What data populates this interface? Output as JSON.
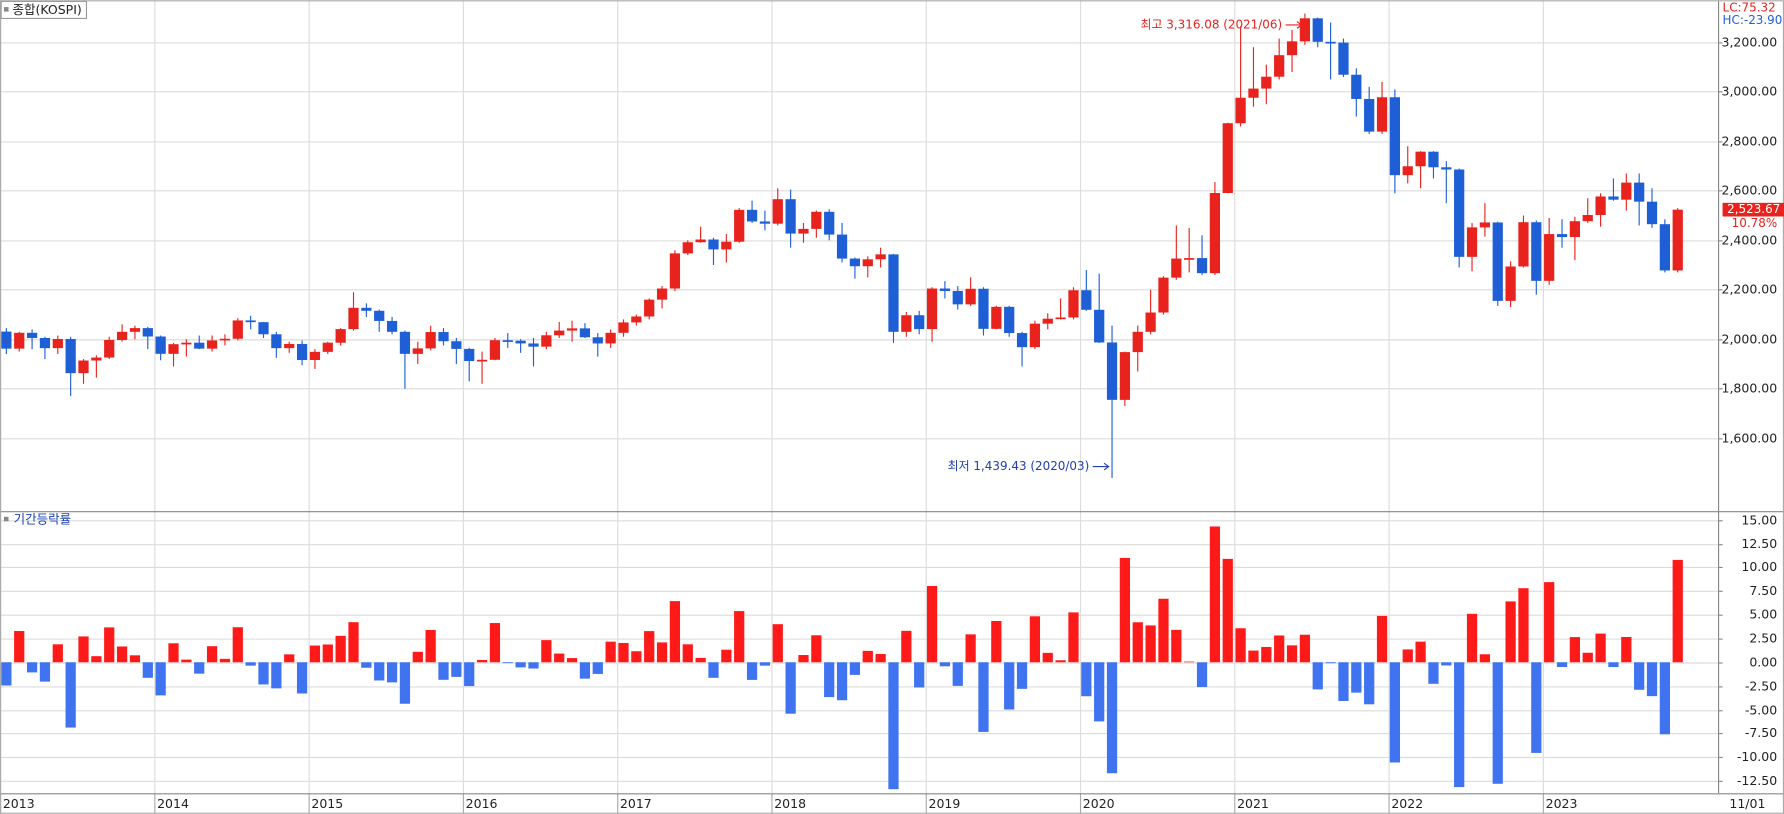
{
  "chart_data": [
    {
      "type": "candlestick",
      "title": "종합(KOSPI)",
      "categories": [
        "2013",
        null,
        null,
        null,
        null,
        null,
        null,
        null,
        null,
        null,
        null,
        null,
        "2014",
        null,
        null,
        null,
        null,
        null,
        null,
        null,
        null,
        null,
        null,
        null,
        "2015",
        null,
        null,
        null,
        null,
        null,
        null,
        null,
        null,
        null,
        null,
        null,
        "2016",
        null,
        null,
        null,
        null,
        null,
        null,
        null,
        null,
        null,
        null,
        null,
        "2017",
        null,
        null,
        null,
        null,
        null,
        null,
        null,
        null,
        null,
        null,
        null,
        "2018",
        null,
        null,
        null,
        null,
        null,
        null,
        null,
        null,
        null,
        null,
        null,
        "2019",
        null,
        null,
        null,
        null,
        null,
        null,
        null,
        null,
        null,
        null,
        null,
        "2020",
        null,
        null,
        null,
        null,
        null,
        null,
        null,
        null,
        null,
        null,
        null,
        "2021",
        null,
        null,
        null,
        null,
        null,
        null,
        null,
        null,
        null,
        null,
        null,
        "2022",
        null,
        null,
        null,
        null,
        null,
        null,
        null,
        null,
        null,
        null,
        null,
        "2023",
        null,
        null,
        null,
        null,
        null,
        null,
        null,
        null,
        null,
        null
      ],
      "open": [
        2031,
        1962,
        2026,
        2005,
        1964,
        2001,
        1863,
        1914,
        1926,
        1997,
        2030,
        2045,
        2011,
        1941,
        1980,
        1986,
        1962,
        1995,
        2002,
        2076,
        2069,
        2020,
        1964,
        1981,
        1916,
        1949,
        1986,
        2041,
        2127,
        2115,
        2074,
        2030,
        1941,
        1963,
        2029,
        1992,
        1961,
        1912,
        1917,
        1996,
        1994,
        1983,
        1970,
        2016,
        2035,
        2044,
        2008,
        1983,
        2026,
        2068,
        2092,
        2160,
        2205,
        2347,
        2392,
        2403,
        2363,
        2394,
        2523,
        2476,
        2467,
        2566,
        2427,
        2446,
        2515,
        2423,
        2326,
        2295,
        2323,
        2343,
        2030,
        2097,
        2041,
        2205,
        2195,
        2141,
        2204,
        2042,
        2131,
        2025,
        1968,
        2063,
        2083,
        2088,
        2198,
        2119,
        1987,
        1755,
        1948,
        2030,
        2108,
        2249,
        2326,
        2328,
        2267,
        2591,
        2873,
        2976,
        3013,
        3061,
        3148,
        3204,
        3297,
        3202,
        3199,
        3069,
        2971,
        2839,
        2978,
        2663,
        2699,
        2758,
        2695,
        2686,
        2333,
        2452,
        2472,
        2155,
        2294,
        2473,
        2236,
        2425,
        2413,
        2477,
        2502,
        2577,
        2564,
        2633,
        2556,
        2465,
        2278
      ],
      "high": [
        2045,
        2030,
        2040,
        2010,
        2015,
        2010,
        1920,
        1935,
        2010,
        2060,
        2055,
        2050,
        2015,
        1985,
        2000,
        2015,
        2015,
        2020,
        2085,
        2095,
        2070,
        2030,
        1990,
        1995,
        1960,
        1990,
        2045,
        2190,
        2145,
        2120,
        2090,
        2035,
        1990,
        2055,
        2045,
        2005,
        1965,
        1950,
        2005,
        2025,
        2000,
        2005,
        2030,
        2070,
        2075,
        2065,
        2025,
        2040,
        2080,
        2100,
        2165,
        2215,
        2360,
        2400,
        2455,
        2410,
        2425,
        2530,
        2560,
        2520,
        2610,
        2605,
        2470,
        2520,
        2525,
        2470,
        2330,
        2335,
        2370,
        2345,
        2110,
        2115,
        2210,
        2235,
        2215,
        2250,
        2210,
        2135,
        2135,
        2030,
        2075,
        2105,
        2165,
        2210,
        2280,
        2265,
        2055,
        1950,
        2055,
        2200,
        2255,
        2460,
        2450,
        2420,
        2635,
        2875,
        3265,
        3180,
        3110,
        3215,
        3250,
        3316.08,
        3300,
        3280,
        3215,
        3095,
        3020,
        3040,
        3010,
        2780,
        2760,
        2760,
        2720,
        2690,
        2470,
        2550,
        2475,
        2315,
        2500,
        2480,
        2490,
        2485,
        2495,
        2570,
        2590,
        2650,
        2670,
        2670,
        2610,
        2485,
        2530
      ],
      "low": [
        1940,
        1950,
        1960,
        1920,
        1940,
        1770,
        1820,
        1845,
        1920,
        1990,
        2000,
        1960,
        1915,
        1890,
        1930,
        1960,
        1950,
        1975,
        1995,
        2040,
        2005,
        1925,
        1945,
        1895,
        1880,
        1940,
        1975,
        2035,
        2090,
        2030,
        2020,
        1800,
        1900,
        1955,
        1975,
        1900,
        1830,
        1820,
        1915,
        1965,
        1945,
        1890,
        1960,
        2005,
        1990,
        2005,
        1930,
        1965,
        2010,
        2055,
        2080,
        2125,
        2195,
        2340,
        2390,
        2300,
        2310,
        2390,
        2470,
        2440,
        2460,
        2370,
        2390,
        2410,
        2400,
        2310,
        2245,
        2250,
        2290,
        1985,
        2010,
        2020,
        1990,
        2165,
        2120,
        2135,
        2015,
        2040,
        2010,
        1890,
        1960,
        2040,
        2080,
        2080,
        2115,
        1985,
        1439.43,
        1730,
        1870,
        2020,
        2100,
        2240,
        2270,
        2260,
        2260,
        2590,
        2860,
        2940,
        2950,
        3050,
        3080,
        3190,
        3180,
        3050,
        3060,
        2900,
        2830,
        2830,
        2590,
        2630,
        2610,
        2650,
        2550,
        2290,
        2275,
        2415,
        2135,
        2130,
        2290,
        2180,
        2220,
        2370,
        2320,
        2470,
        2455,
        2560,
        2520,
        2460,
        2450,
        2270,
        2270
      ],
      "close": [
        1962,
        2026,
        2005,
        1964,
        2001,
        1863,
        1914,
        1926,
        1997,
        2030,
        2045,
        2011,
        1941,
        1980,
        1986,
        1962,
        1995,
        2002,
        2076,
        2069,
        2020,
        1964,
        1981,
        1916,
        1949,
        1986,
        2041,
        2127,
        2115,
        2074,
        2030,
        1941,
        1963,
        2029,
        1992,
        1961,
        1912,
        1917,
        1996,
        1994,
        1983,
        1970,
        2016,
        2035,
        2044,
        2008,
        1983,
        2026,
        2068,
        2092,
        2160,
        2205,
        2347,
        2392,
        2403,
        2363,
        2394,
        2523,
        2476,
        2467,
        2566,
        2427,
        2446,
        2515,
        2423,
        2326,
        2295,
        2323,
        2343,
        2030,
        2097,
        2041,
        2205,
        2195,
        2141,
        2204,
        2042,
        2131,
        2025,
        1968,
        2063,
        2083,
        2088,
        2198,
        2119,
        1987,
        1755,
        1948,
        2030,
        2108,
        2249,
        2326,
        2328,
        2267,
        2591,
        2873,
        2976,
        3013,
        3061,
        3148,
        3204,
        3297,
        3202,
        3199,
        3069,
        2971,
        2839,
        2978,
        2663,
        2699,
        2758,
        2695,
        2686,
        2333,
        2452,
        2472,
        2155,
        2294,
        2473,
        2236,
        2425,
        2413,
        2477,
        2502,
        2577,
        2564,
        2633,
        2556,
        2465,
        2278,
        2523.67
      ],
      "up_color": "#e8231e",
      "down_color": "#1f5fd6",
      "ylim": [
        1310,
        3370
      ],
      "yticks": [
        {
          "value": 1600,
          "label": "1,600.00"
        },
        {
          "value": 1800,
          "label": "1,800.00"
        },
        {
          "value": 2000,
          "label": "2,000.00"
        },
        {
          "value": 2200,
          "label": "2,200.00"
        },
        {
          "value": 2400,
          "label": "2,400.00"
        },
        {
          "value": 2600,
          "label": "2,600.00"
        },
        {
          "value": 2800,
          "label": "2,800.00"
        },
        {
          "value": 3000,
          "label": "3,000.00"
        },
        {
          "value": 3200,
          "label": "3,200.00"
        }
      ],
      "grid": true,
      "high_annotation": "최고 3,316.08 (2021/06)",
      "low_annotation": "최저 1,439.43 (2020/03)",
      "lc_label": "LC:75.32",
      "hc_label": "HC:-23.90",
      "last_price_label": "2,523.67",
      "last_change_label": "10.78%"
    },
    {
      "type": "bar",
      "title": "기간등락률",
      "values": [
        -2.45,
        3.29,
        -1.07,
        -2.04,
        1.89,
        -6.88,
        2.72,
        0.64,
        3.67,
        1.66,
        0.73,
        -1.64,
        -3.49,
        2,
        0.28,
        -1.2,
        1.69,
        0.36,
        3.69,
        -0.36,
        -2.34,
        -2.75,
        0.83,
        -3.29,
        1.76,
        1.87,
        2.78,
        4.22,
        -0.58,
        -1.92,
        -2.12,
        -4.37,
        1.1,
        3.4,
        -1.85,
        -1.54,
        -2.51,
        0.24,
        4.13,
        -0.09,
        -0.54,
        -0.66,
        2.33,
        0.92,
        0.44,
        -1.73,
        -1.23,
        2.17,
        2.03,
        1.16,
        3.28,
        2.09,
        6.44,
        1.89,
        0.46,
        -1.64,
        1.32,
        5.39,
        -1.86,
        -0.36,
        4.01,
        -5.42,
        0.76,
        2.84,
        -3.67,
        -4,
        -1.33,
        1.2,
        0.87,
        -13.37,
        3.31,
        -2.66,
        8.03,
        -0.43,
        -2.49,
        2.94,
        -7.34,
        4.35,
        -4.98,
        -2.8,
        4.84,
        0.99,
        0.21,
        5.25,
        -3.58,
        -6.23,
        -11.69,
        10.99,
        4.21,
        3.88,
        6.69,
        3.41,
        0.07,
        -2.61,
        14.3,
        10.89,
        3.58,
        1.23,
        1.61,
        2.82,
        1.78,
        2.9,
        -2.86,
        -0.1,
        -4.08,
        -3.2,
        -4.43,
        4.88,
        -10.56,
        1.35,
        2.17,
        -2.27,
        -0.34,
        -13.15,
        5.1,
        0.84,
        -12.8,
        6.41,
        7.8,
        -9.55,
        8.44,
        -0.5,
        2.65,
        1,
        3.02,
        -0.5,
        2.66,
        -2.9,
        -3.57,
        -7.59,
        10.78
      ],
      "up_color": "#ff1a1a",
      "down_color": "#3f73f0",
      "ylim": [
        -13.8,
        15.8
      ],
      "yticks": [
        {
          "value": 15,
          "label": "15.00"
        },
        {
          "value": 12.5,
          "label": "12.50"
        },
        {
          "value": 10,
          "label": "10.00"
        },
        {
          "value": 7.5,
          "label": "7.50"
        },
        {
          "value": 5,
          "label": "5.00"
        },
        {
          "value": 2.5,
          "label": "2.50"
        },
        {
          "value": 0,
          "label": "0.00"
        },
        {
          "value": -2.5,
          "label": "-2.50"
        },
        {
          "value": -5,
          "label": "-5.00"
        },
        {
          "value": -7.5,
          "label": "-7.50"
        },
        {
          "value": -10,
          "label": "-10.00"
        },
        {
          "value": -12.5,
          "label": "-12.50"
        }
      ],
      "grid": true
    }
  ],
  "x_end_label": "11/01"
}
